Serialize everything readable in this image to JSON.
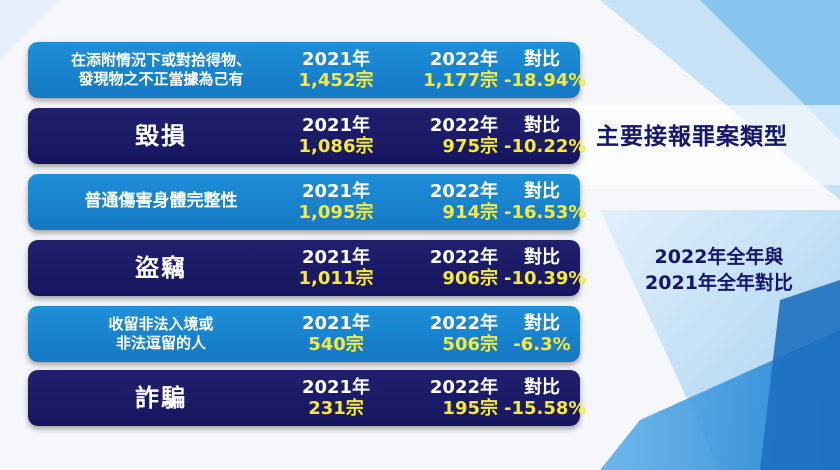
{
  "side_title": "主要接報罪案類型",
  "side_subtitle": [
    "2022年全年與",
    "2021年全年對比"
  ],
  "rows": [
    {
      "category": "在添附情況下或對拾得物、\n發現物之不正當據為己有",
      "label_2021": "2021年",
      "value_2021": "1,452宗",
      "label_2022": "2022年",
      "value_2022": "1,177宗",
      "label_compare": "對比",
      "value_compare": "-18.94%"
    },
    {
      "category": "毀損",
      "label_2021": "2021年",
      "value_2021": "1,086宗",
      "label_2022": "2022年",
      "value_2022": "975宗",
      "label_compare": "對比",
      "value_compare": "-10.22%"
    },
    {
      "category": "普通傷害身體完整性",
      "label_2021": "2021年",
      "value_2021": "1,095宗",
      "label_2022": "2022年",
      "value_2022": "914宗",
      "label_compare": "對比",
      "value_compare": "-16.53%"
    },
    {
      "category": "盜竊",
      "label_2021": "2021年",
      "value_2021": "1,011宗",
      "label_2022": "2022年",
      "value_2022": "906宗",
      "label_compare": "對比",
      "value_compare": "-10.39%"
    },
    {
      "category": "收留非法入境或\n非法逗留的人",
      "label_2021": "2021年",
      "value_2021": "540宗",
      "label_2022": "2022年",
      "value_2022": "506宗",
      "label_compare": "對比",
      "value_compare": "-6.3%"
    },
    {
      "category": "詐騙",
      "label_2021": "2021年",
      "value_2021": "231宗",
      "label_2022": "2022年",
      "value_2022": "195宗",
      "label_compare": "對比",
      "value_compare": "-15.58%"
    }
  ],
  "colors": {
    "light_row": "#1a86d2",
    "dark_row": "#1a1a66",
    "value_text": "#f7e93a",
    "side_text": "#16166a"
  }
}
